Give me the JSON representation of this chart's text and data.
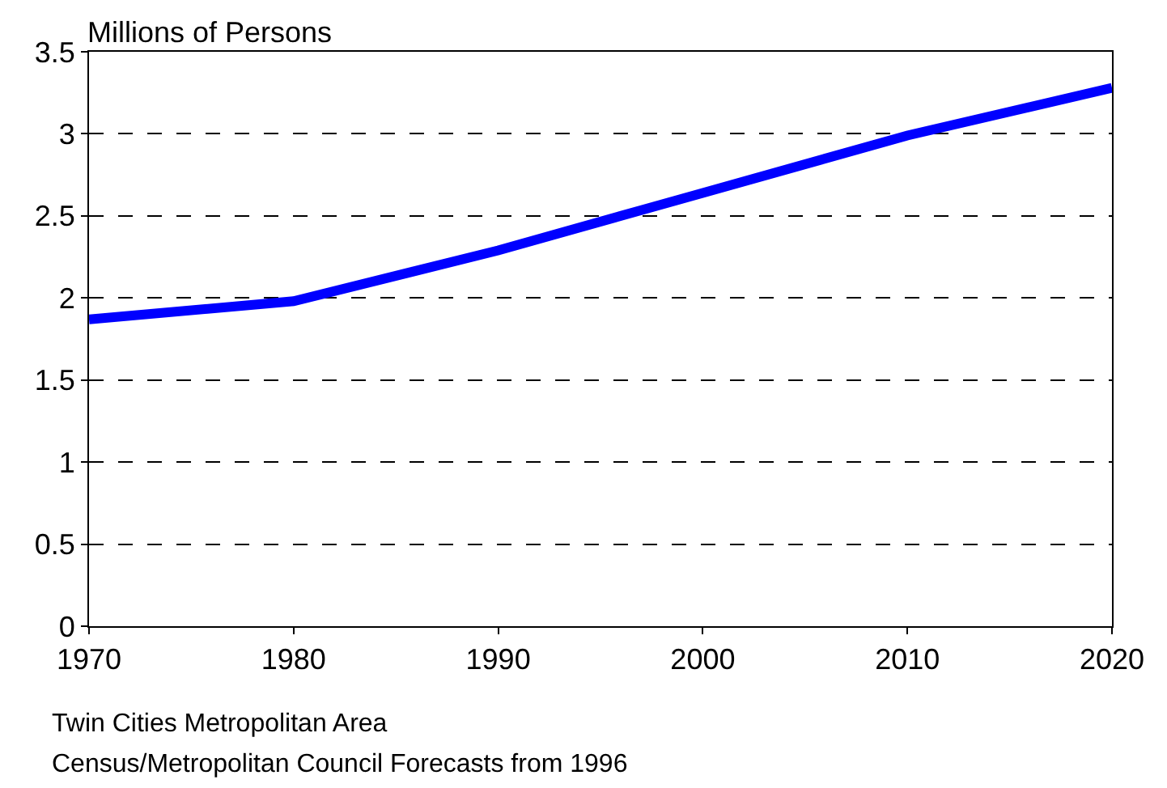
{
  "chart_data": {
    "type": "line",
    "ylabel": "Millions of Persons",
    "x": [
      1970,
      1980,
      1990,
      2000,
      2010,
      2020
    ],
    "series": [
      {
        "color": "#0000ff",
        "values": [
          1.87,
          1.98,
          2.29,
          2.64,
          2.99,
          3.28
        ]
      }
    ],
    "xlim": [
      1970,
      2020
    ],
    "xticks": [
      1970,
      1980,
      1990,
      2000,
      2010,
      2020
    ],
    "ylim": [
      0,
      3.5
    ],
    "yticks": [
      0,
      0.5,
      1,
      1.5,
      2,
      2.5,
      3,
      3.5
    ],
    "grid": "y",
    "line_style": "solid",
    "marker": "none",
    "annotations": [
      "Twin Cities Metropolitan Area",
      "Census/Metropolitan Council Forecasts from 1996"
    ]
  }
}
